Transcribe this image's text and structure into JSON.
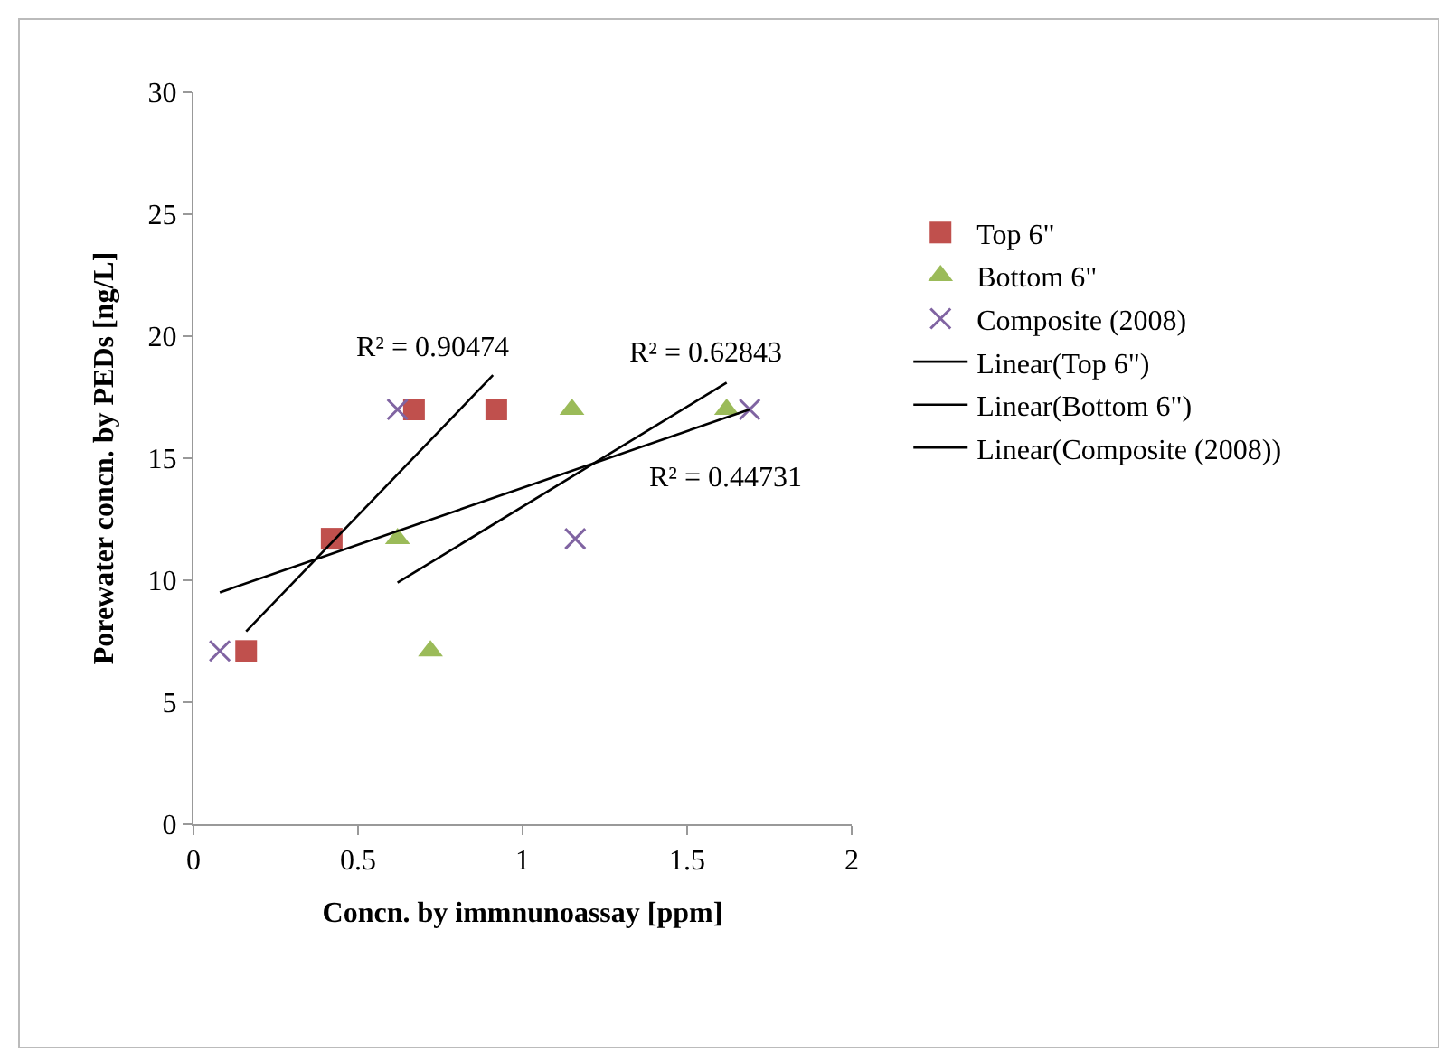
{
  "chart_data": {
    "type": "scatter",
    "xlabel": "Concn. by immnunoassay [ppm]",
    "ylabel": "Porewater concn. by PEDs [ng/L]",
    "xlim": [
      0,
      2
    ],
    "xticks": [
      0,
      0.5,
      1,
      1.5,
      2
    ],
    "ylim": [
      0,
      30
    ],
    "yticks": [
      0,
      5,
      10,
      15,
      20,
      25,
      30
    ],
    "grid": false,
    "legend": "right",
    "series": [
      {
        "name": "Top 6\"",
        "color": "#c0504d",
        "marker": "square",
        "x": [
          0.16,
          0.42,
          0.67,
          0.92
        ],
        "values": [
          7.1,
          11.7,
          17,
          17
        ]
      },
      {
        "name": "Bottom 6\"",
        "color": "#9bbb59",
        "marker": "triangle",
        "x": [
          0.62,
          0.72,
          1.15,
          1.62
        ],
        "values": [
          11.7,
          7.1,
          17,
          17
        ]
      },
      {
        "name": "Composite (2008)",
        "color": "#8064a2",
        "marker": "cross",
        "x": [
          0.08,
          0.62,
          1.16,
          1.69
        ],
        "values": [
          7.1,
          17,
          11.7,
          17
        ]
      },
      {
        "name": "Linear(Top 6\")",
        "type": "line",
        "color": "#000000",
        "marker": "none",
        "x": [
          0.16,
          0.91
        ],
        "values": [
          7.9,
          18.4
        ]
      },
      {
        "name": "Linear(Bottom 6\")",
        "type": "line",
        "color": "#000000",
        "marker": "none",
        "x": [
          0.62,
          1.62
        ],
        "values": [
          9.9,
          18.1
        ]
      },
      {
        "name": "Linear(Composite (2008))",
        "type": "line",
        "color": "#000000",
        "marker": "none",
        "x": [
          0.08,
          1.69
        ],
        "values": [
          9.5,
          17
        ]
      }
    ],
    "annotations": [
      "R² = 0.90474",
      "R² = 0.62843",
      "R² = 0.44731"
    ]
  }
}
